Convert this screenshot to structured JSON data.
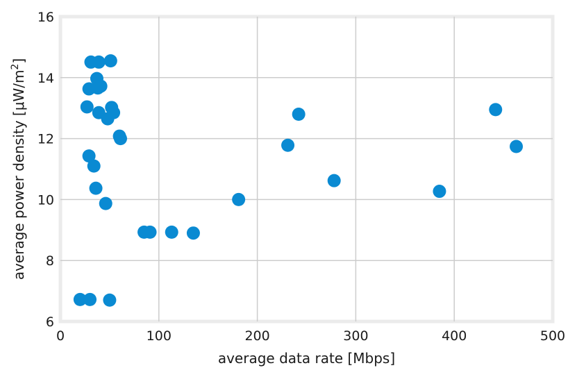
{
  "chart_data": {
    "type": "scatter",
    "xlabel": "average data rate [Mbps]",
    "ylabel": "average power density [μW/m²]",
    "xlim": [
      0,
      500
    ],
    "ylim": [
      6,
      16
    ],
    "xticks": [
      0,
      100,
      200,
      300,
      400,
      500
    ],
    "xtick_labels": [
      "0",
      "100",
      "200",
      "300",
      "400",
      "500"
    ],
    "yticks": [
      6,
      8,
      10,
      12,
      14,
      16
    ],
    "ytick_labels": [
      "6",
      "8",
      "10",
      "12",
      "14",
      "16"
    ],
    "grid": true,
    "marker_color": "#0a8ad2",
    "grid_color": "#cccccc",
    "frame_color": "#ebebeb",
    "points": [
      {
        "x": 20,
        "y": 6.72
      },
      {
        "x": 30,
        "y": 6.72
      },
      {
        "x": 50,
        "y": 6.7
      },
      {
        "x": 46,
        "y": 9.87
      },
      {
        "x": 36,
        "y": 10.37
      },
      {
        "x": 34,
        "y": 11.1
      },
      {
        "x": 29,
        "y": 11.43
      },
      {
        "x": 27,
        "y": 13.04
      },
      {
        "x": 29,
        "y": 13.63
      },
      {
        "x": 31,
        "y": 14.51
      },
      {
        "x": 39,
        "y": 14.51
      },
      {
        "x": 51,
        "y": 14.55
      },
      {
        "x": 37,
        "y": 13.97
      },
      {
        "x": 38,
        "y": 13.66
      },
      {
        "x": 41,
        "y": 13.72
      },
      {
        "x": 39,
        "y": 12.85
      },
      {
        "x": 48,
        "y": 12.65
      },
      {
        "x": 52,
        "y": 13.02
      },
      {
        "x": 54,
        "y": 12.85
      },
      {
        "x": 60,
        "y": 12.08
      },
      {
        "x": 61,
        "y": 12.0
      },
      {
        "x": 85,
        "y": 8.93
      },
      {
        "x": 91,
        "y": 8.93
      },
      {
        "x": 113,
        "y": 8.93
      },
      {
        "x": 135,
        "y": 8.9
      },
      {
        "x": 181,
        "y": 10.0
      },
      {
        "x": 231,
        "y": 11.78
      },
      {
        "x": 242,
        "y": 12.8
      },
      {
        "x": 278,
        "y": 10.62
      },
      {
        "x": 385,
        "y": 10.27
      },
      {
        "x": 442,
        "y": 12.95
      },
      {
        "x": 463,
        "y": 11.74
      }
    ]
  }
}
